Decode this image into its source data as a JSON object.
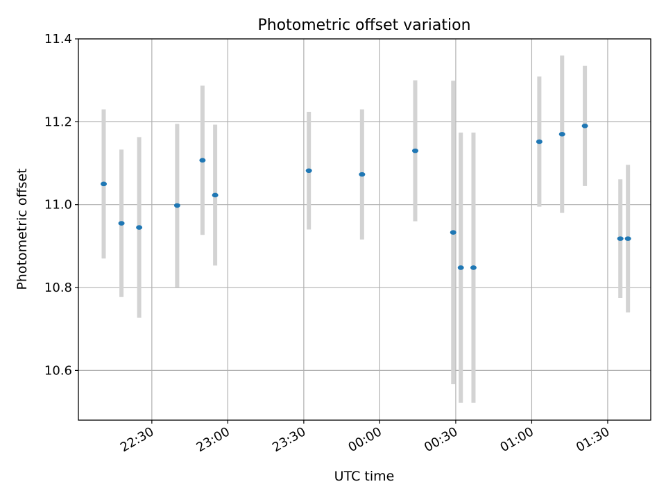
{
  "chart_data": {
    "type": "scatter",
    "title": "Photometric offset variation",
    "xlabel": "UTC time",
    "ylabel": "Photometric offset",
    "x_ticks": [
      "22:30",
      "23:00",
      "23:30",
      "00:00",
      "00:30",
      "01:00",
      "01:30"
    ],
    "y_ticks": [
      "10.6",
      "10.8",
      "11.0",
      "11.2",
      "11.4"
    ],
    "xlim": [
      "22:01",
      "01:47"
    ],
    "ylim": [
      10.48,
      11.4
    ],
    "grid": true,
    "colors": {
      "marker": "#1f77b4",
      "errorbar": "#d3d3d3",
      "grid": "#b0b0b0"
    },
    "points": [
      {
        "x": "22:11",
        "y": 11.05,
        "err": 0.18
      },
      {
        "x": "22:18",
        "y": 10.955,
        "err": 0.178
      },
      {
        "x": "22:25",
        "y": 10.945,
        "err": 0.218
      },
      {
        "x": "22:40",
        "y": 10.998,
        "err": 0.197
      },
      {
        "x": "22:50",
        "y": 11.107,
        "err": 0.18
      },
      {
        "x": "22:55",
        "y": 11.023,
        "err": 0.17
      },
      {
        "x": "23:32",
        "y": 11.082,
        "err": 0.142
      },
      {
        "x": "23:53",
        "y": 11.073,
        "err": 0.157
      },
      {
        "x": "00:14",
        "y": 11.13,
        "err": 0.17
      },
      {
        "x": "00:29",
        "y": 10.933,
        "err": 0.366
      },
      {
        "x": "00:32",
        "y": 10.848,
        "err": 0.326
      },
      {
        "x": "00:37",
        "y": 10.848,
        "err": 0.326
      },
      {
        "x": "01:03",
        "y": 11.152,
        "err": 0.157
      },
      {
        "x": "01:12",
        "y": 11.17,
        "err": 0.19
      },
      {
        "x": "01:21",
        "y": 11.19,
        "err": 0.145
      },
      {
        "x": "01:35",
        "y": 10.918,
        "err": 0.143
      },
      {
        "x": "01:38",
        "y": 10.918,
        "err": 0.178
      }
    ]
  }
}
